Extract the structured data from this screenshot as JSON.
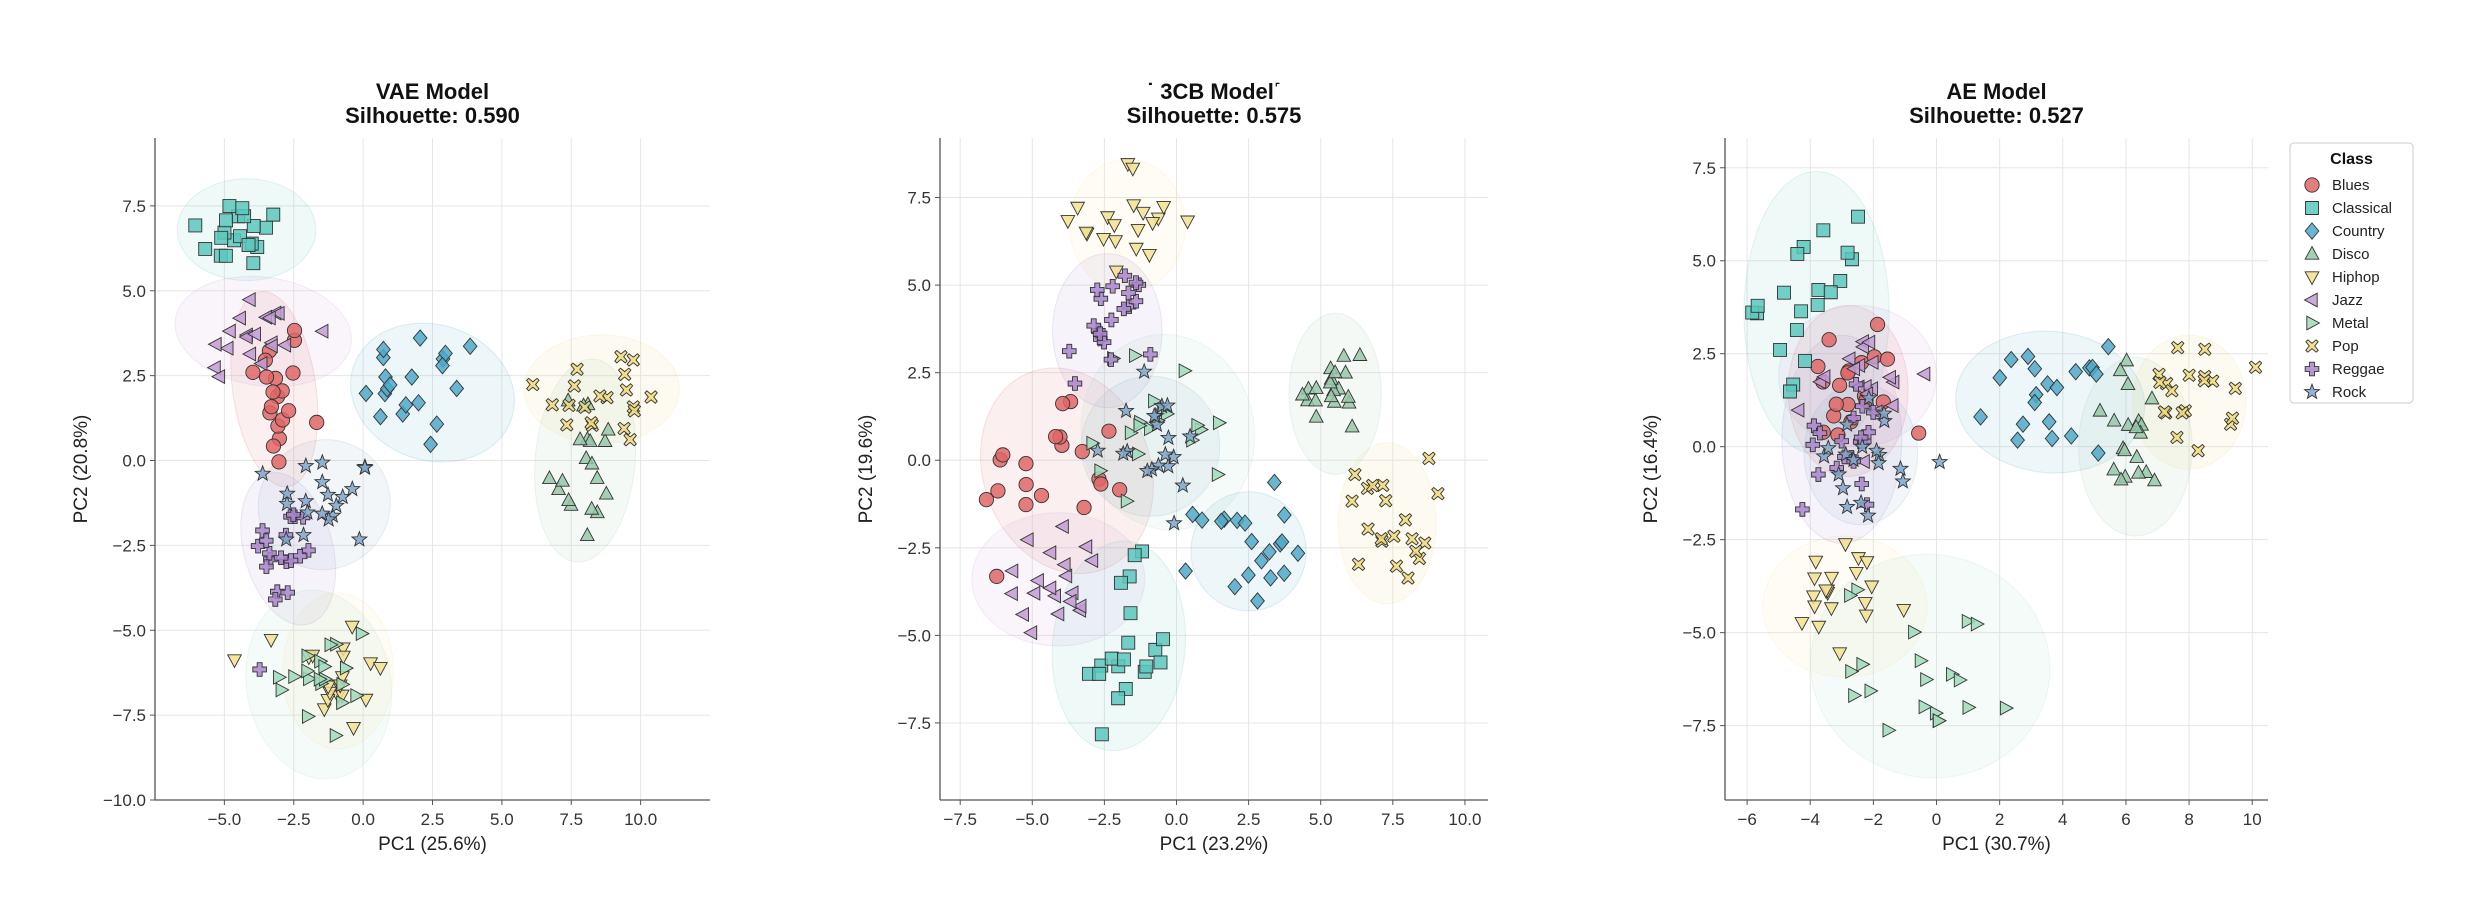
{
  "legend": {
    "title": "Class",
    "placement": "right"
  },
  "classes": [
    {
      "name": "Blues",
      "color": "#e06666",
      "marker": "circle"
    },
    {
      "name": "Classical",
      "color": "#5cc8bd",
      "marker": "square"
    },
    {
      "name": "Country",
      "color": "#4fa9c9",
      "marker": "diamond"
    },
    {
      "name": "Disco",
      "color": "#96c8a8",
      "marker": "triangle-up"
    },
    {
      "name": "Hiphop",
      "color": "#f2e08f",
      "marker": "triangle-down"
    },
    {
      "name": "Jazz",
      "color": "#c39bd3",
      "marker": "triangle-left"
    },
    {
      "name": "Metal",
      "color": "#9fdbb9",
      "marker": "triangle-right"
    },
    {
      "name": "Pop",
      "color": "#f0d97a",
      "marker": "x"
    },
    {
      "name": "Reggae",
      "color": "#a985cc",
      "marker": "plus"
    },
    {
      "name": "Rock",
      "color": "#7fa6c9",
      "marker": "star"
    }
  ],
  "chart_data": [
    {
      "type": "scatter",
      "title": "VAE Model",
      "subtitle": "Silhouette: 0.590",
      "xlabel": "PC1 (25.6%)",
      "ylabel": "PC2 (20.8%)",
      "xlim": [
        -7.5,
        12.5
      ],
      "ylim": [
        -10.0,
        9.5
      ],
      "xticks": [
        -5.0,
        -2.5,
        0.0,
        2.5,
        5.0,
        7.5,
        10.0
      ],
      "xtick_labels": [
        "−5.0",
        "−2.5",
        "0.0",
        "2.5",
        "5.0",
        "7.5",
        "10.0"
      ],
      "yticks": [
        -10.0,
        -7.5,
        -5.0,
        -2.5,
        0.0,
        2.5,
        5.0,
        7.5
      ],
      "ytick_labels": [
        "−10.0",
        "−7.5",
        "−5.0",
        "−2.5",
        "0.0",
        "2.5",
        "5.0",
        "7.5"
      ],
      "grid": true,
      "clusters": [
        {
          "class": "Blues",
          "cx": -3.2,
          "cy": 2.0,
          "sx": 0.55,
          "sy": 1.2
        },
        {
          "class": "Classical",
          "cx": -4.3,
          "cy": 6.7,
          "sx": 0.95,
          "sy": 0.55
        },
        {
          "class": "Country",
          "cx": 2.2,
          "cy": 2.0,
          "sx": 1.1,
          "sy": 0.95
        },
        {
          "class": "Disco",
          "cx": 7.9,
          "cy": 0.0,
          "sx": 0.65,
          "sy": 1.3
        },
        {
          "class": "Hiphop",
          "cx": -1.0,
          "cy": -6.3,
          "sx": 0.9,
          "sy": 0.9
        },
        {
          "class": "Jazz",
          "cx": -4.0,
          "cy": 3.7,
          "sx": 1.1,
          "sy": 0.7
        },
        {
          "class": "Metal",
          "cx": -1.5,
          "cy": -6.6,
          "sx": 1.0,
          "sy": 1.1
        },
        {
          "class": "Pop",
          "cx": 8.7,
          "cy": 2.0,
          "sx": 1.2,
          "sy": 0.8
        },
        {
          "class": "Reggae",
          "cx": -2.8,
          "cy": -2.8,
          "sx": 0.6,
          "sy": 0.8
        },
        {
          "class": "Rock",
          "cx": -1.4,
          "cy": -1.2,
          "sx": 0.9,
          "sy": 0.8
        }
      ],
      "ellipses": [
        {
          "class": "Blues",
          "cx": -3.2,
          "cy": 2.1,
          "rx": 1.5,
          "ry": 2.9,
          "angle": 8
        },
        {
          "class": "Classical",
          "cx": -4.2,
          "cy": 6.8,
          "rx": 2.5,
          "ry": 1.5,
          "angle": 0
        },
        {
          "class": "Country",
          "cx": 2.5,
          "cy": 2.0,
          "rx": 3.0,
          "ry": 2.0,
          "angle": -18
        },
        {
          "class": "Disco",
          "cx": 8.0,
          "cy": 0.0,
          "rx": 1.8,
          "ry": 3.0,
          "angle": -5
        },
        {
          "class": "Hiphop",
          "cx": -0.9,
          "cy": -6.2,
          "rx": 2.0,
          "ry": 2.3,
          "angle": 0
        },
        {
          "class": "Jazz",
          "cx": -3.6,
          "cy": 3.8,
          "rx": 3.2,
          "ry": 1.6,
          "angle": -8
        },
        {
          "class": "Metal",
          "cx": -1.6,
          "cy": -6.6,
          "rx": 2.6,
          "ry": 2.8,
          "angle": 10
        },
        {
          "class": "Pop",
          "cx": 8.6,
          "cy": 2.1,
          "rx": 2.8,
          "ry": 1.6,
          "angle": 0
        },
        {
          "class": "Reggae",
          "cx": -2.7,
          "cy": -2.6,
          "rx": 1.6,
          "ry": 2.3,
          "angle": 15
        },
        {
          "class": "Rock",
          "cx": -1.4,
          "cy": -1.3,
          "rx": 2.4,
          "ry": 1.9,
          "angle": 30
        }
      ]
    },
    {
      "type": "scatter",
      "title": "˙ 3CB Model˹",
      "subtitle": "Silhouette: 0.575",
      "xlabel": "PC1 (23.2%)",
      "ylabel": "PC2 (19.6%)",
      "xlim": [
        -8.2,
        10.8
      ],
      "ylim": [
        -9.7,
        9.2
      ],
      "xticks": [
        -7.5,
        -5.0,
        -2.5,
        0.0,
        2.5,
        5.0,
        7.5,
        10.0
      ],
      "xtick_labels": [
        "−7.5",
        "−5.0",
        "−2.5",
        "0.0",
        "2.5",
        "5.0",
        "7.5",
        "10.0"
      ],
      "yticks": [
        -7.5,
        -5.0,
        -2.5,
        0.0,
        2.5,
        5.0,
        7.5
      ],
      "ytick_labels": [
        "−7.5",
        "−5.0",
        "−2.5",
        "0.0",
        "2.5",
        "5.0",
        "7.5"
      ],
      "grid": true,
      "clusters": [
        {
          "class": "Blues",
          "cx": -4.2,
          "cy": -0.3,
          "sx": 1.3,
          "sy": 1.3
        },
        {
          "class": "Classical",
          "cx": -2.0,
          "cy": -5.5,
          "sx": 0.9,
          "sy": 1.2
        },
        {
          "class": "Country",
          "cx": 2.3,
          "cy": -2.5,
          "sx": 0.8,
          "sy": 0.8
        },
        {
          "class": "Disco",
          "cx": 5.5,
          "cy": 2.0,
          "sx": 0.55,
          "sy": 1.0
        },
        {
          "class": "Hiphop",
          "cx": -1.5,
          "cy": 6.8,
          "sx": 0.9,
          "sy": 0.9
        },
        {
          "class": "Jazz",
          "cx": -4.2,
          "cy": -3.3,
          "sx": 1.1,
          "sy": 0.7
        },
        {
          "class": "Metal",
          "cx": -0.4,
          "cy": 1.0,
          "sx": 1.2,
          "sy": 1.1
        },
        {
          "class": "Pop",
          "cx": 7.3,
          "cy": -1.7,
          "sx": 0.75,
          "sy": 0.9
        },
        {
          "class": "Reggae",
          "cx": -2.3,
          "cy": 3.8,
          "sx": 0.75,
          "sy": 0.9
        },
        {
          "class": "Rock",
          "cx": -1.0,
          "cy": 0.5,
          "sx": 1.0,
          "sy": 0.8
        }
      ],
      "ellipses": [
        {
          "class": "Blues",
          "cx": -3.8,
          "cy": -0.3,
          "rx": 2.9,
          "ry": 3.0,
          "angle": 20
        },
        {
          "class": "Classical",
          "cx": -2.0,
          "cy": -5.3,
          "rx": 2.3,
          "ry": 3.0,
          "angle": -5
        },
        {
          "class": "Country",
          "cx": 2.5,
          "cy": -2.6,
          "rx": 2.0,
          "ry": 1.7,
          "angle": 0
        },
        {
          "class": "Disco",
          "cx": 5.5,
          "cy": 1.9,
          "rx": 1.6,
          "ry": 2.3,
          "angle": 0
        },
        {
          "class": "Hiphop",
          "cx": -1.7,
          "cy": 6.7,
          "rx": 2.0,
          "ry": 1.9,
          "angle": 0
        },
        {
          "class": "Jazz",
          "cx": -4.1,
          "cy": -3.4,
          "rx": 3.0,
          "ry": 1.9,
          "angle": 0
        },
        {
          "class": "Metal",
          "cx": -0.3,
          "cy": 0.8,
          "rx": 3.0,
          "ry": 2.8,
          "angle": 10
        },
        {
          "class": "Pop",
          "cx": 7.3,
          "cy": -1.8,
          "rx": 1.7,
          "ry": 2.3,
          "angle": 0
        },
        {
          "class": "Reggae",
          "cx": -2.4,
          "cy": 3.7,
          "rx": 1.9,
          "ry": 2.2,
          "angle": 0
        },
        {
          "class": "Rock",
          "cx": -0.9,
          "cy": 0.4,
          "rx": 2.4,
          "ry": 2.0,
          "angle": 0
        }
      ]
    },
    {
      "type": "scatter",
      "title": "AE Model",
      "subtitle": "Silhouette: 0.527",
      "xlabel": "PC1 (30.7%)",
      "ylabel": "PC2 (16.4%)",
      "xlim": [
        -6.7,
        10.5
      ],
      "ylim": [
        -9.5,
        8.3
      ],
      "xticks": [
        -6,
        -4,
        -2,
        0,
        2,
        4,
        6,
        8,
        10
      ],
      "xtick_labels": [
        "−6",
        "−4",
        "−2",
        "0",
        "2",
        "4",
        "6",
        "8",
        "10"
      ],
      "yticks": [
        -7.5,
        -5.0,
        -2.5,
        0.0,
        2.5,
        5.0,
        7.5
      ],
      "ytick_labels": [
        "−7.5",
        "−5.0",
        "−2.5",
        "0.0",
        "2.5",
        "5.0",
        "7.5"
      ],
      "grid": true,
      "clusters": [
        {
          "class": "Blues",
          "cx": -2.8,
          "cy": 1.5,
          "sx": 0.8,
          "sy": 1.0
        },
        {
          "class": "Classical",
          "cx": -3.8,
          "cy": 4.0,
          "sx": 0.9,
          "sy": 1.0
        },
        {
          "class": "Country",
          "cx": 3.5,
          "cy": 1.3,
          "sx": 0.9,
          "sy": 0.7
        },
        {
          "class": "Disco",
          "cx": 6.3,
          "cy": 0.2,
          "sx": 0.7,
          "sy": 1.0
        },
        {
          "class": "Hiphop",
          "cx": -2.8,
          "cy": -4.2,
          "sx": 1.0,
          "sy": 0.8
        },
        {
          "class": "Jazz",
          "cx": -2.3,
          "cy": 1.8,
          "sx": 1.0,
          "sy": 0.8
        },
        {
          "class": "Metal",
          "cx": -0.2,
          "cy": -5.8,
          "sx": 1.4,
          "sy": 1.1
        },
        {
          "class": "Pop",
          "cx": 8.0,
          "cy": 1.2,
          "sx": 0.7,
          "sy": 0.7
        },
        {
          "class": "Reggae",
          "cx": -3.0,
          "cy": 0.2,
          "sx": 0.6,
          "sy": 1.0
        },
        {
          "class": "Rock",
          "cx": -2.3,
          "cy": -0.3,
          "sx": 0.8,
          "sy": 0.8
        }
      ],
      "ellipses": [
        {
          "class": "Blues",
          "cx": -2.8,
          "cy": 1.5,
          "rx": 1.9,
          "ry": 2.3,
          "angle": 0
        },
        {
          "class": "Classical",
          "cx": -3.8,
          "cy": 3.6,
          "rx": 2.3,
          "ry": 3.8,
          "angle": 0
        },
        {
          "class": "Country",
          "cx": 3.6,
          "cy": 1.2,
          "rx": 3.0,
          "ry": 1.9,
          "angle": -5
        },
        {
          "class": "Disco",
          "cx": 6.3,
          "cy": 0.0,
          "rx": 1.8,
          "ry": 2.4,
          "angle": 0
        },
        {
          "class": "Hiphop",
          "cx": -2.9,
          "cy": -4.3,
          "rx": 2.6,
          "ry": 1.9,
          "angle": 0
        },
        {
          "class": "Jazz",
          "cx": -2.5,
          "cy": 1.9,
          "rx": 2.5,
          "ry": 1.9,
          "angle": 0
        },
        {
          "class": "Metal",
          "cx": -0.2,
          "cy": -5.9,
          "rx": 3.8,
          "ry": 3.0,
          "angle": -10
        },
        {
          "class": "Pop",
          "cx": 8.0,
          "cy": 1.2,
          "rx": 1.8,
          "ry": 1.8,
          "angle": 0
        },
        {
          "class": "Reggae",
          "cx": -3.0,
          "cy": 0.2,
          "rx": 1.9,
          "ry": 2.8,
          "angle": 0
        },
        {
          "class": "Rock",
          "cx": -2.4,
          "cy": -0.2,
          "rx": 1.8,
          "ry": 1.9,
          "angle": 0
        }
      ]
    }
  ]
}
